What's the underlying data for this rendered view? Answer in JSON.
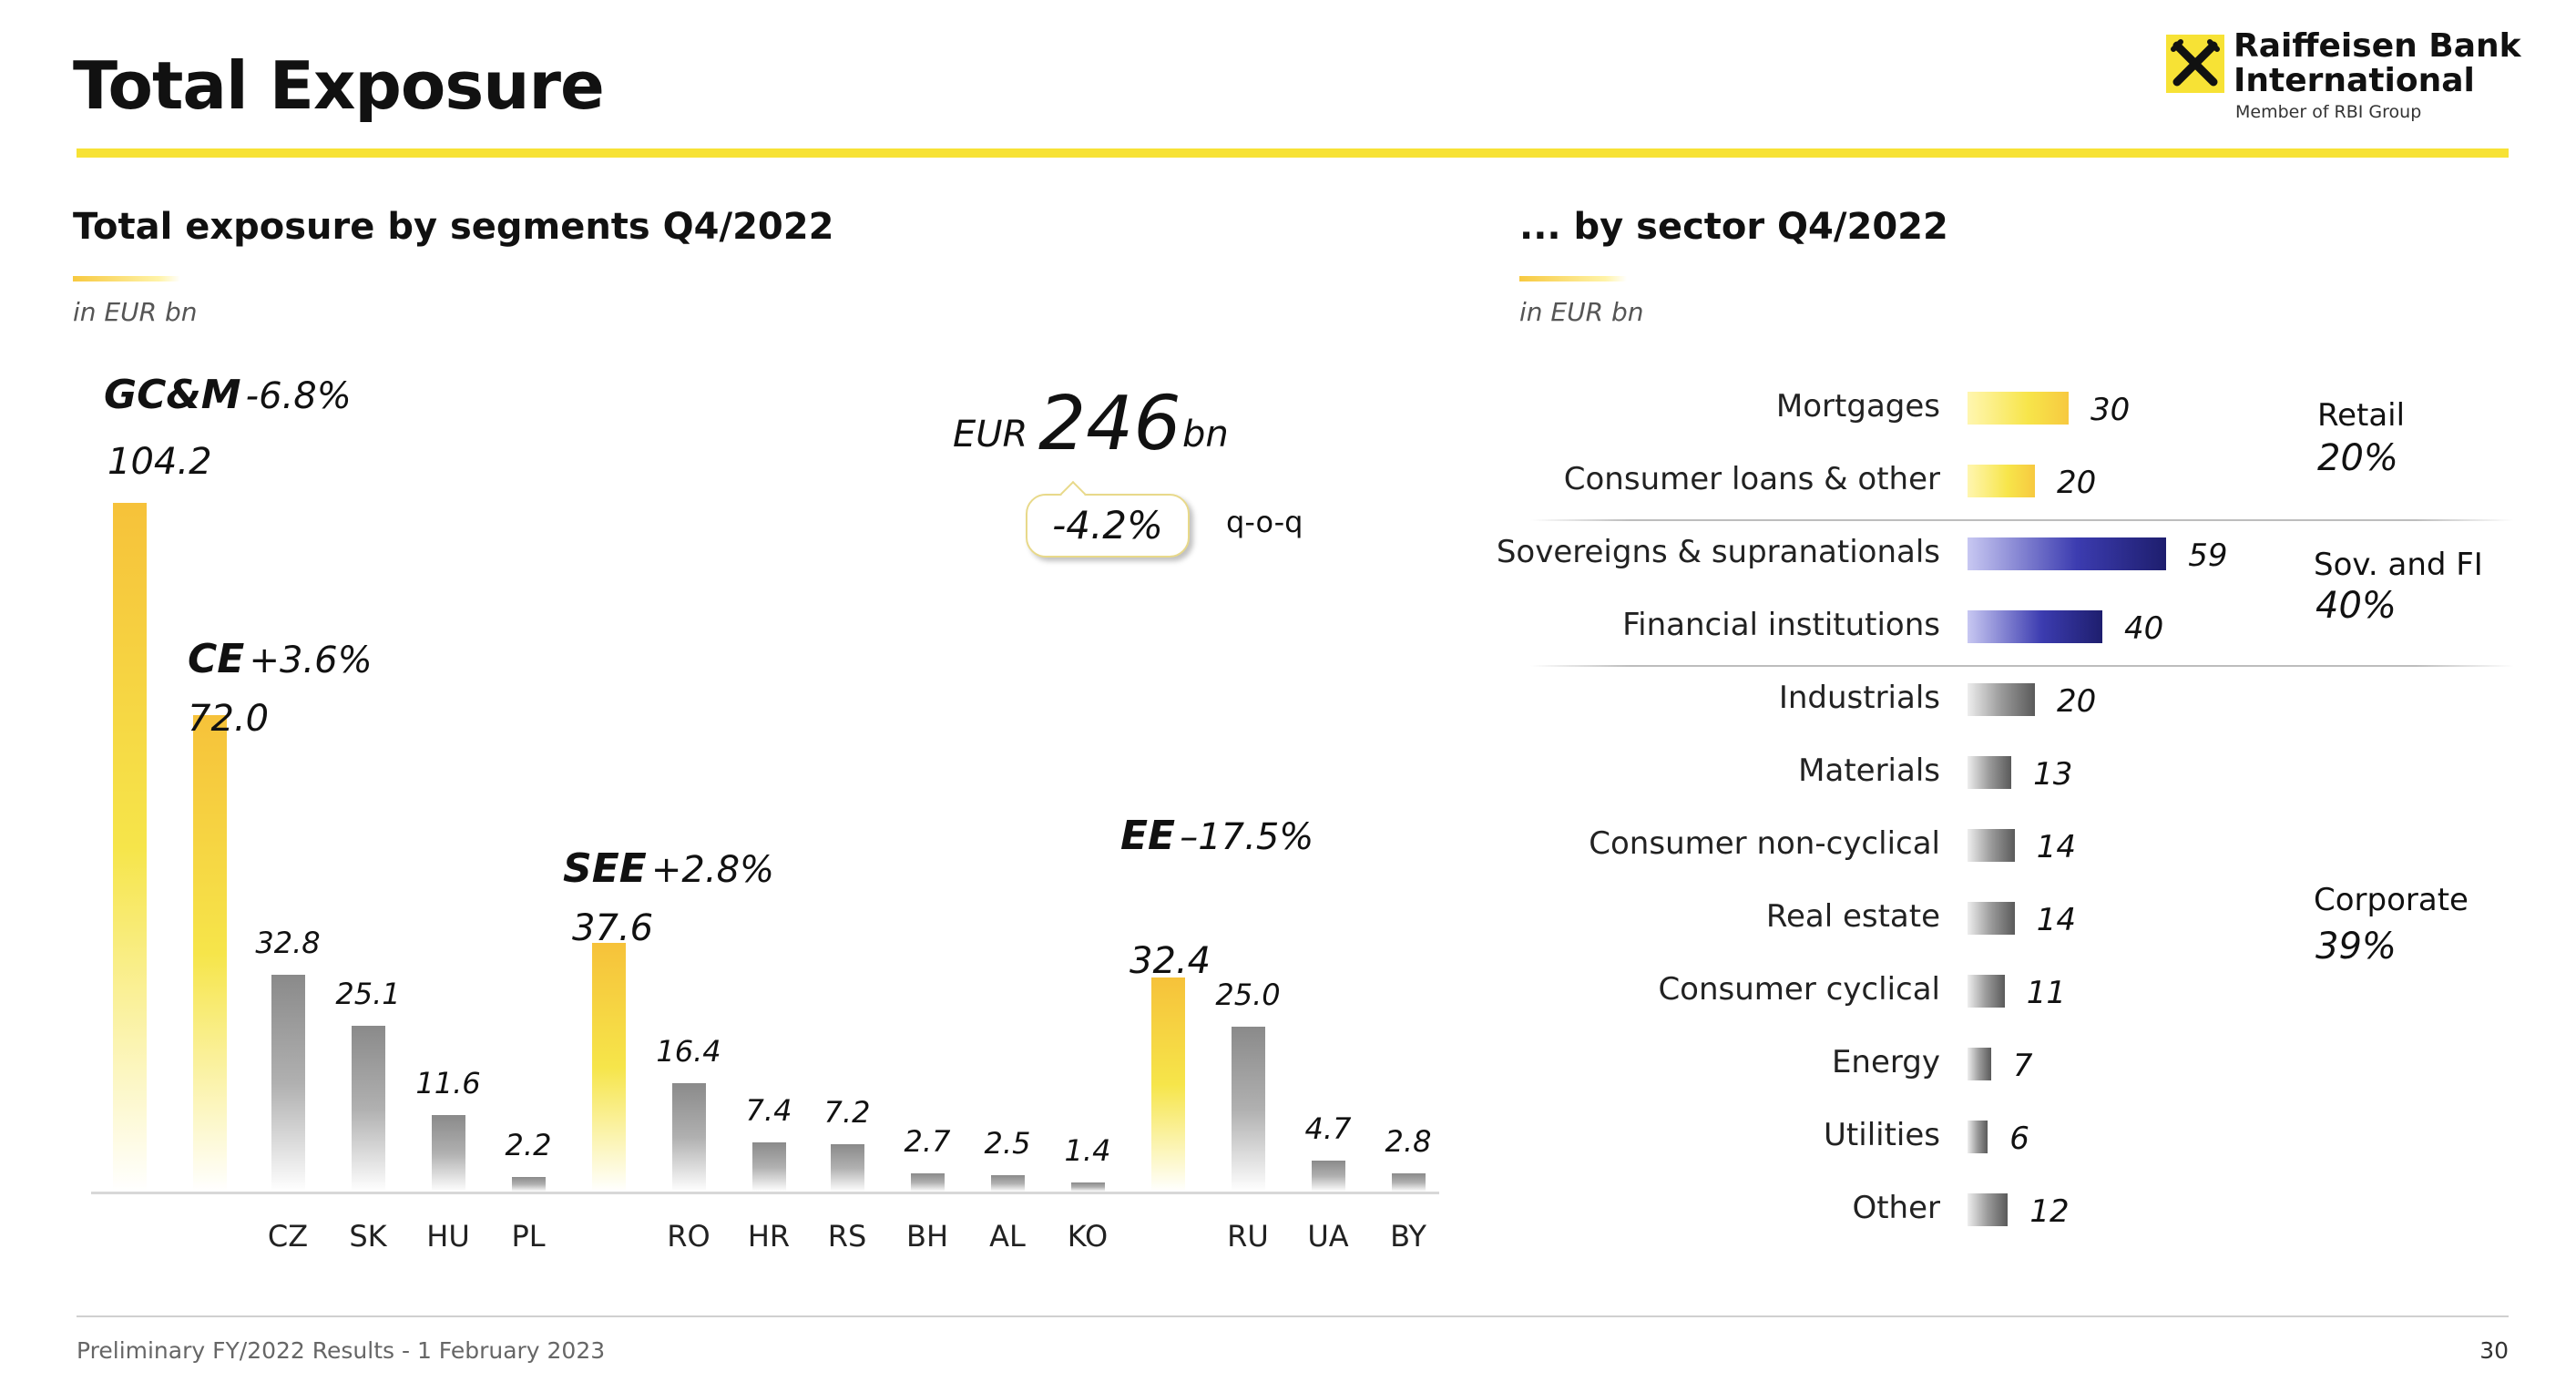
{
  "header": {
    "title": "Total Exposure",
    "logo_name_line1": "Raiffeisen Bank",
    "logo_name_line2": "International",
    "logo_sub": "Member of RBI Group",
    "accent_color": "#f7e235"
  },
  "segments_panel": {
    "title": "Total exposure by segments Q4/2022",
    "unit": "in EUR bn",
    "total": {
      "prefix": "EUR",
      "value": "246",
      "suffix": "bn",
      "change": "-4.2%",
      "change_label": "q-o-q"
    }
  },
  "sector_panel": {
    "title": "... by sector Q4/2022",
    "unit": "in EUR bn",
    "groups": [
      {
        "name": "Retail",
        "pct": "20%"
      },
      {
        "name": "Sov. and FI",
        "pct": "40%"
      },
      {
        "name": "Corporate",
        "pct": "39%"
      }
    ]
  },
  "chart_data": [
    {
      "type": "bar",
      "title": "Total exposure by segments Q4/2022",
      "ylabel": "in EUR bn",
      "segments": [
        {
          "name": "GC&M",
          "change": "-6.8%",
          "total": "104.2"
        },
        {
          "name": "CE",
          "change": "+3.6%",
          "total": "72.0"
        },
        {
          "name": "SEE",
          "change": "+2.8%",
          "total": "37.6"
        },
        {
          "name": "EE",
          "change": "–17.5%",
          "total": "32.4"
        }
      ],
      "bars": [
        {
          "category": "",
          "value": 104.2,
          "label": "",
          "color": "yellow"
        },
        {
          "category": "",
          "value": 72.0,
          "label": "",
          "color": "yellow"
        },
        {
          "category": "CZ",
          "value": 32.8,
          "label": "32.8",
          "color": "gray"
        },
        {
          "category": "SK",
          "value": 25.1,
          "label": "25.1",
          "color": "gray"
        },
        {
          "category": "HU",
          "value": 11.6,
          "label": "11.6",
          "color": "gray"
        },
        {
          "category": "PL",
          "value": 2.2,
          "label": "2.2",
          "color": "gray"
        },
        {
          "category": "",
          "value": 37.6,
          "label": "",
          "color": "yellow"
        },
        {
          "category": "RO",
          "value": 16.4,
          "label": "16.4",
          "color": "gray"
        },
        {
          "category": "HR",
          "value": 7.4,
          "label": "7.4",
          "color": "gray"
        },
        {
          "category": "RS",
          "value": 7.2,
          "label": "7.2",
          "color": "gray"
        },
        {
          "category": "BH",
          "value": 2.7,
          "label": "2.7",
          "color": "gray"
        },
        {
          "category": "AL",
          "value": 2.5,
          "label": "2.5",
          "color": "gray"
        },
        {
          "category": "KO",
          "value": 1.4,
          "label": "1.4",
          "color": "gray"
        },
        {
          "category": "",
          "value": 32.4,
          "label": "",
          "color": "yellow"
        },
        {
          "category": "RU",
          "value": 25.0,
          "label": "25.0",
          "color": "gray"
        },
        {
          "category": "UA",
          "value": 4.7,
          "label": "4.7",
          "color": "gray"
        },
        {
          "category": "BY",
          "value": 2.8,
          "label": "2.8",
          "color": "gray"
        }
      ],
      "ylim": [
        0,
        110
      ],
      "grid": false
    },
    {
      "type": "bar",
      "orientation": "horizontal",
      "title": "... by sector Q4/2022",
      "ylabel": "in EUR bn",
      "categories": [
        "Mortgages",
        "Consumer loans & other",
        "Sovereigns & supranationals",
        "Financial institutions",
        "Industrials",
        "Materials",
        "Consumer non-cyclical",
        "Real estate",
        "Consumer cyclical",
        "Energy",
        "Utilities",
        "Other"
      ],
      "values": [
        30,
        20,
        59,
        40,
        20,
        13,
        14,
        14,
        11,
        7,
        6,
        12
      ],
      "colors": [
        "yellow",
        "yellow",
        "navy",
        "navy",
        "gray",
        "gray",
        "gray",
        "gray",
        "gray",
        "gray",
        "gray",
        "gray"
      ],
      "xlim": [
        0,
        60
      ],
      "grid": false
    }
  ],
  "footer": {
    "text": "Preliminary FY/2022 Results - 1 February 2023",
    "page": "30"
  }
}
